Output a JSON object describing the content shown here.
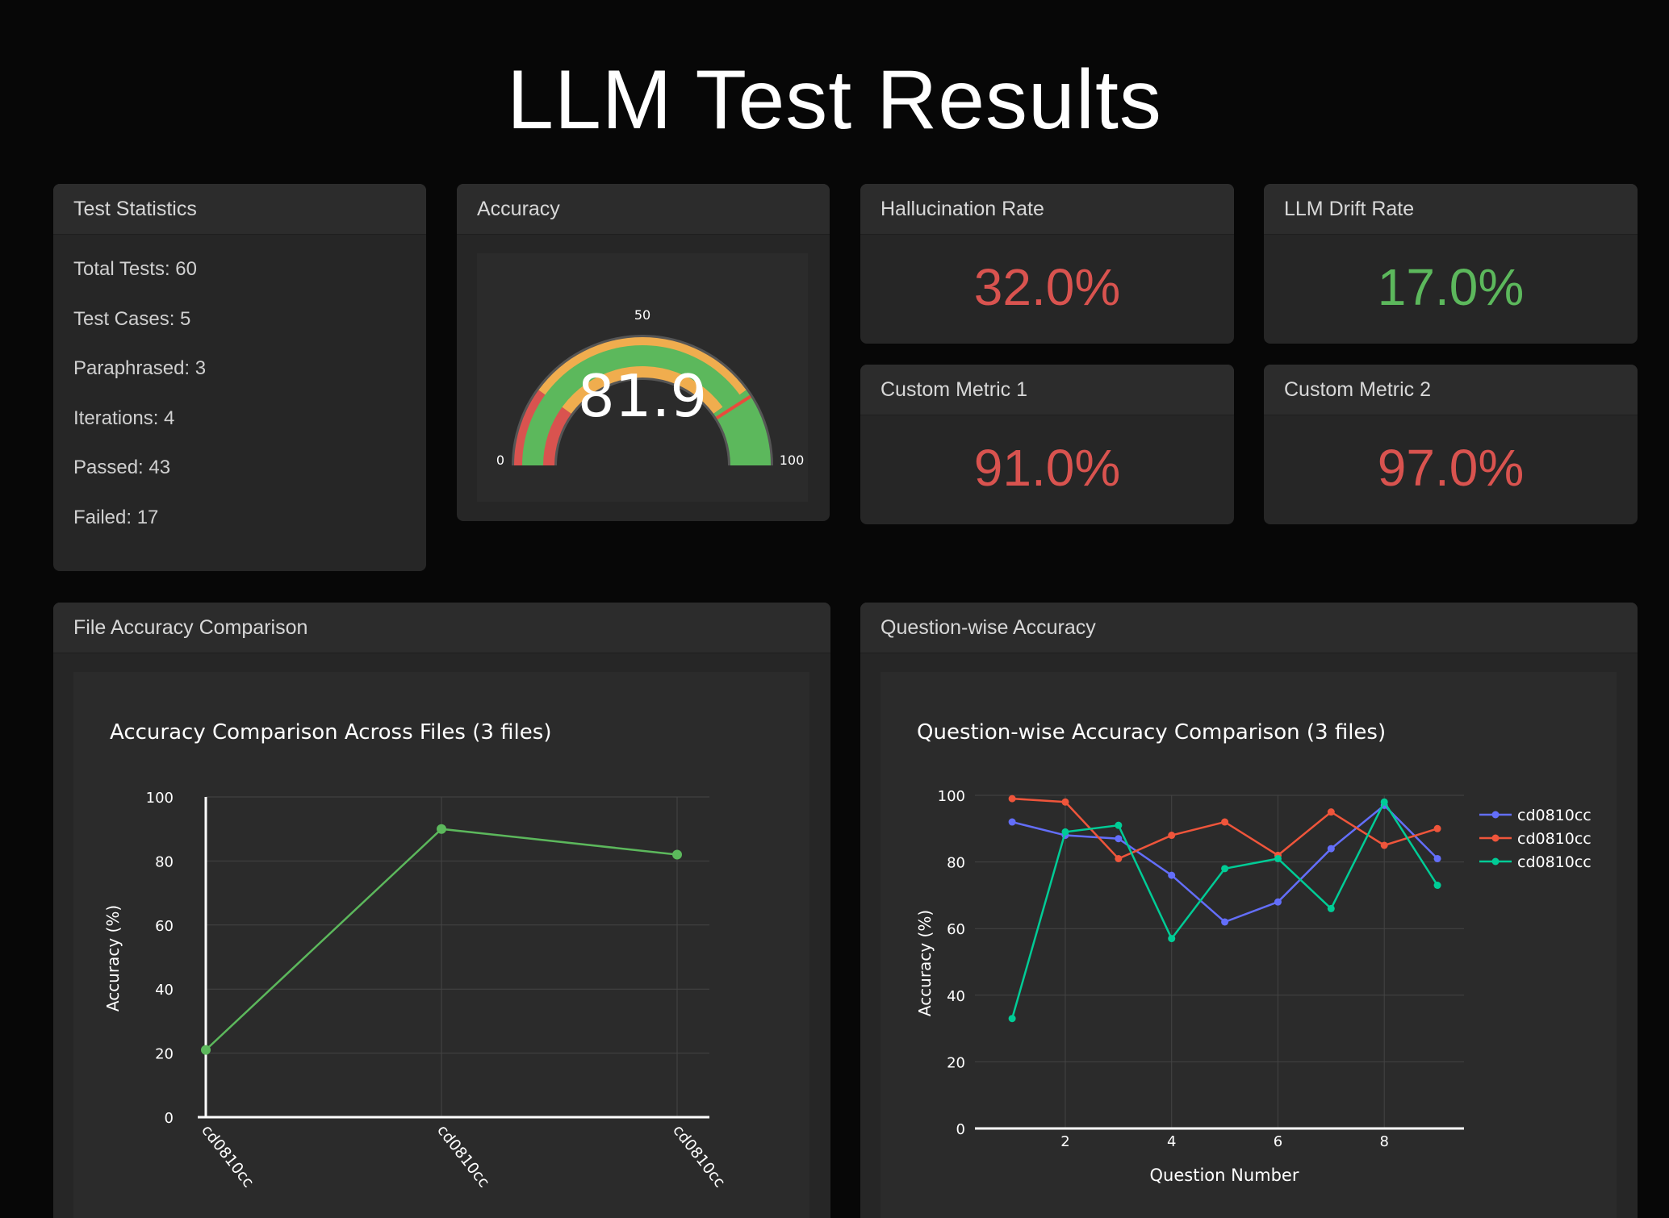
{
  "page": {
    "title": "LLM Test Results"
  },
  "test_statistics": {
    "title": "Test Statistics",
    "rows": [
      "Total Tests: 60",
      "Test Cases: 5",
      "Paraphrased: 3",
      "Iterations: 4",
      "Passed: 43",
      "Failed: 17"
    ]
  },
  "accuracy_gauge": {
    "title": "Accuracy",
    "value": 81.9,
    "value_text": "81.9",
    "min": 0,
    "max": 100,
    "min_label": "0",
    "mid_label": "50",
    "max_label": "100",
    "colors": {
      "low": "#d9534f",
      "mid": "#f0ad4e",
      "high": "#5cb85c",
      "threshold": "#e74c3c"
    }
  },
  "metrics": {
    "hallucination": {
      "title": "Hallucination Rate",
      "value": "32.0%",
      "color": "#d9534f"
    },
    "drift": {
      "title": "LLM Drift Rate",
      "value": "17.0%",
      "color": "#5cb85c"
    },
    "custom1": {
      "title": "Custom Metric 1",
      "value": "91.0%",
      "color": "#d9534f"
    },
    "custom2": {
      "title": "Custom Metric 2",
      "value": "97.0%",
      "color": "#d9534f"
    }
  },
  "file_accuracy": {
    "card_title": "File Accuracy Comparison"
  },
  "question_accuracy": {
    "card_title": "Question-wise Accuracy"
  },
  "chart_data": [
    {
      "type": "line",
      "title": "Accuracy Comparison Across Files (3 files)",
      "xlabel": "",
      "ylabel": "Accuracy (%)",
      "categories": [
        "cd0810cc",
        "cd0810cc",
        "cd0810cc"
      ],
      "ylim": [
        0,
        100
      ],
      "yticks": [
        "0",
        "20",
        "40",
        "60",
        "80",
        "100"
      ],
      "series": [
        {
          "name": "accuracy",
          "color": "#5cb85c",
          "values": [
            21,
            90,
            82
          ]
        }
      ]
    },
    {
      "type": "line",
      "title": "Question-wise Accuracy Comparison (3 files)",
      "xlabel": "Question Number",
      "ylabel": "Accuracy (%)",
      "x": [
        1,
        2,
        3,
        4,
        5,
        6,
        7,
        8,
        9
      ],
      "xlim": [
        0.3,
        9.5
      ],
      "xticks": [
        "2",
        "4",
        "6",
        "8"
      ],
      "ylim": [
        0,
        100
      ],
      "yticks": [
        "0",
        "20",
        "40",
        "60",
        "80",
        "100"
      ],
      "legend": "top-right",
      "series": [
        {
          "name": "cd0810cc",
          "color": "#636efa",
          "values": [
            92,
            88,
            87,
            76,
            62,
            68,
            84,
            97,
            81
          ]
        },
        {
          "name": "cd0810cc",
          "color": "#ef553b",
          "values": [
            99,
            98,
            81,
            88,
            92,
            82,
            95,
            85,
            90
          ]
        },
        {
          "name": "cd0810cc",
          "color": "#00cc96",
          "values": [
            33,
            89,
            91,
            57,
            78,
            81,
            66,
            98,
            73
          ]
        }
      ]
    }
  ]
}
